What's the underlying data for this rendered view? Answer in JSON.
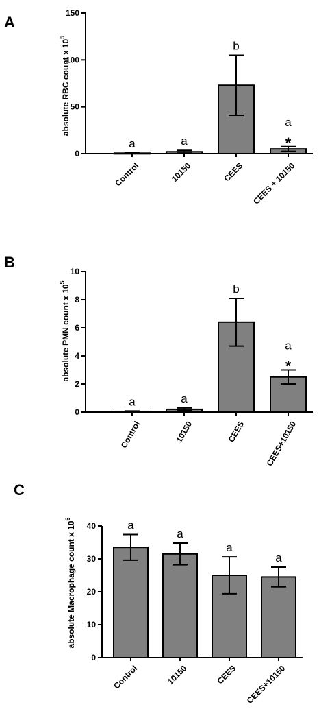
{
  "chart_data": [
    {
      "type": "bar",
      "panel": "A",
      "ylabel_main": "absolute RBC count x 10",
      "ylabel_exp": "5",
      "categories": [
        "Control",
        "10150",
        "CEES",
        "CEES + 10150"
      ],
      "values": [
        0.5,
        2,
        73,
        5
      ],
      "errors": [
        0.3,
        1.5,
        32,
        2.5
      ],
      "ylim": [
        0,
        150
      ],
      "yticks": [
        0,
        50,
        100,
        150
      ],
      "letters": [
        "a",
        "a",
        "b",
        "a"
      ],
      "stars": [
        "",
        "",
        "",
        "*"
      ],
      "bar_color": "#808080",
      "label_rotation": -45
    },
    {
      "type": "bar",
      "panel": "B",
      "ylabel_main": "absolute PMN count x 10",
      "ylabel_exp": "5",
      "categories": [
        "Control",
        "10150",
        "CEES",
        "CEES+10150"
      ],
      "values": [
        0.05,
        0.2,
        6.4,
        2.5
      ],
      "errors": [
        0.03,
        0.1,
        1.7,
        0.5
      ],
      "ylim": [
        0,
        10
      ],
      "yticks": [
        0,
        2,
        4,
        6,
        8,
        10
      ],
      "letters": [
        "a",
        "a",
        "b",
        "a"
      ],
      "stars": [
        "",
        "",
        "",
        "*"
      ],
      "bar_color": "#808080",
      "label_rotation": -60
    },
    {
      "type": "bar",
      "panel": "C",
      "ylabel_main": "absolute Macrophage count x 10",
      "ylabel_exp": "6",
      "categories": [
        "Control",
        "10150",
        "CEES",
        "CEES+10150"
      ],
      "values": [
        33.5,
        31.5,
        25,
        24.5
      ],
      "errors": [
        3.9,
        3.3,
        5.6,
        3
      ],
      "ylim": [
        0,
        40
      ],
      "yticks": [
        0,
        10,
        20,
        30,
        40
      ],
      "letters": [
        "a",
        "a",
        "a",
        "a"
      ],
      "stars": [
        "",
        "",
        "",
        ""
      ],
      "bar_color": "#808080",
      "label_rotation": -45
    }
  ]
}
